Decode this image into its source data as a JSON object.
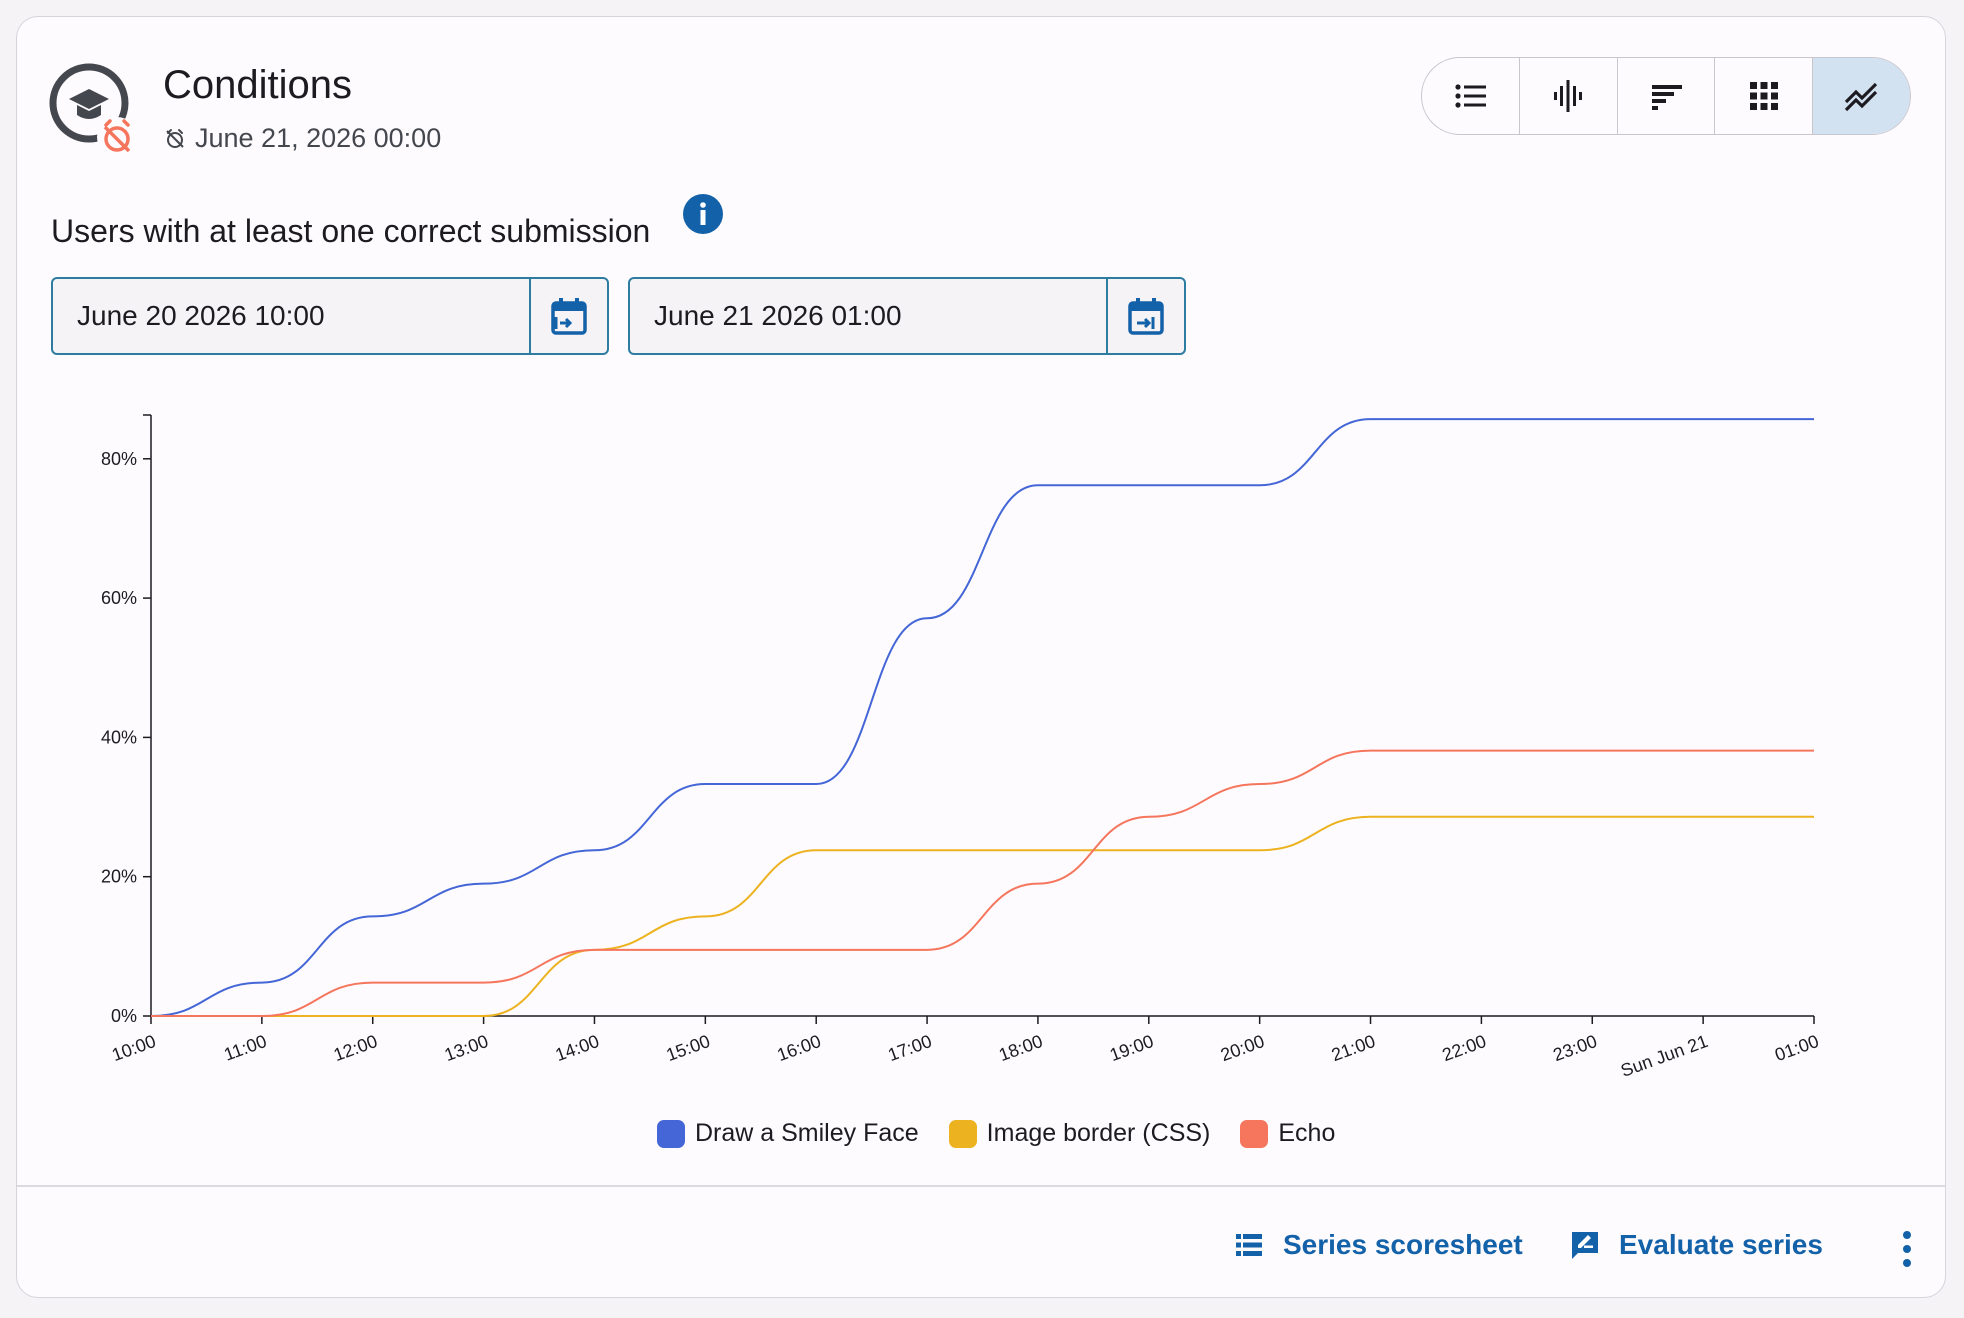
{
  "header": {
    "title": "Conditions",
    "date": "June 21, 2026 00:00"
  },
  "view_toggles": [
    {
      "icon": "list-icon",
      "active": false
    },
    {
      "icon": "waveform-icon",
      "active": false
    },
    {
      "icon": "sort-bars-icon",
      "active": false
    },
    {
      "icon": "grid-icon",
      "active": false
    },
    {
      "icon": "line-chart-icon",
      "active": true
    }
  ],
  "section": {
    "title": "Users with at least one correct submission"
  },
  "range": {
    "start": "June 20 2026 10:00",
    "end": "June 21 2026 01:00"
  },
  "colors": {
    "accent": "#1361a8",
    "series_blue": "#4466d6",
    "series_yellow": "#ecb21f",
    "series_red": "#f5765d"
  },
  "chart_data": {
    "type": "line",
    "x_labels": [
      "10:00",
      "11:00",
      "12:00",
      "13:00",
      "14:00",
      "15:00",
      "16:00",
      "17:00",
      "18:00",
      "19:00",
      "20:00",
      "21:00",
      "22:00",
      "23:00",
      "Sun Jun 21",
      "01:00"
    ],
    "y_ticks": [
      "0%",
      "20%",
      "40%",
      "60%",
      "80%"
    ],
    "ylim": [
      0,
      86
    ],
    "series": [
      {
        "name": "Draw a Smiley Face",
        "color": "#4466d6",
        "values": [
          0,
          4.8,
          14.3,
          19,
          23.8,
          33.3,
          33.3,
          57.1,
          76.2,
          76.2,
          76.2,
          85.7,
          85.7,
          85.7,
          85.7,
          85.7
        ]
      },
      {
        "name": "Image border (CSS)",
        "color": "#ecb21f",
        "values": [
          0,
          0,
          0,
          0,
          9.5,
          14.3,
          23.8,
          23.8,
          23.8,
          23.8,
          23.8,
          28.6,
          28.6,
          28.6,
          28.6,
          28.6
        ]
      },
      {
        "name": "Echo",
        "color": "#f5765d",
        "values": [
          0,
          0,
          4.8,
          4.8,
          9.5,
          9.5,
          9.5,
          9.5,
          19,
          28.6,
          33.3,
          38.1,
          38.1,
          38.1,
          38.1,
          38.1
        ]
      }
    ],
    "legend": "bottom-center",
    "grid": false
  },
  "footer": {
    "scoresheet_label": "Series scoresheet",
    "evaluate_label": "Evaluate series"
  }
}
